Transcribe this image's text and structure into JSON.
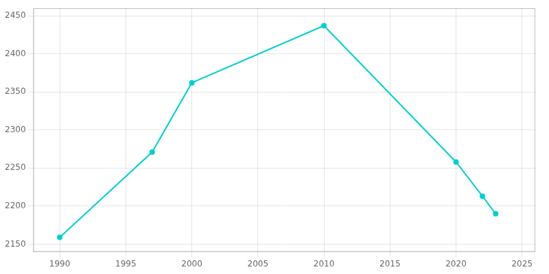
{
  "chart_data": {
    "type": "line",
    "x": [
      1990,
      1997,
      2000,
      2010,
      2020,
      2022,
      2023
    ],
    "values": [
      2159,
      2271,
      2362,
      2437,
      2258,
      2213,
      2190
    ],
    "color": "#00CED1",
    "marker": "o",
    "xlim": [
      1988,
      2026
    ],
    "ylim": [
      2140,
      2460
    ],
    "xticks": [
      1990,
      1995,
      2000,
      2005,
      2010,
      2015,
      2020,
      2025
    ],
    "yticks": [
      2150,
      2200,
      2250,
      2300,
      2350,
      2400,
      2450
    ],
    "grid": true
  }
}
